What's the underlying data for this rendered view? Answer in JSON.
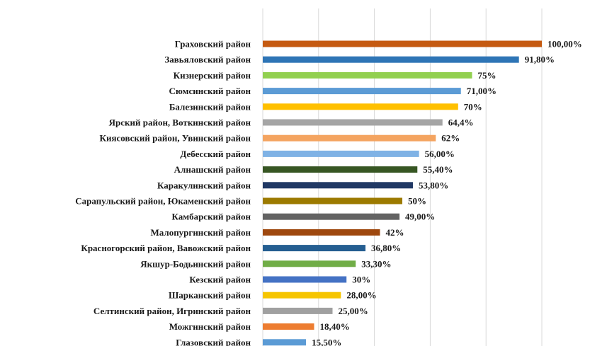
{
  "chart_data": {
    "type": "bar",
    "orientation": "horizontal",
    "title": "",
    "xlabel": "",
    "ylabel": "",
    "xlim": [
      0,
      100
    ],
    "grid": true,
    "categories": [
      "Граховский район",
      "Завьяловский район",
      "Кизнерский район",
      "Сюмсинский район",
      "Балезинский район",
      "Ярский район, Воткинский район",
      "Киясовский район, Увинский район",
      "Дебесский район",
      "Алнашский район",
      "Каракулинский район",
      "Сарапульский район, Юкаменский район",
      "Камбарский район",
      "Малопургинский район",
      "Красногорский район, Вавожский район",
      "Якшур-Бодьинский район",
      "Кезский район",
      "Шарканский район",
      "Селтинский район, Игринский район",
      "Можгинский район",
      "Глазовский район"
    ],
    "values": [
      100,
      91.8,
      75,
      71,
      70,
      64.4,
      62,
      56,
      55.4,
      53.8,
      50,
      49,
      42,
      36.8,
      33.3,
      30,
      28,
      25,
      18.4,
      15.5
    ],
    "value_labels": [
      "100,00%",
      "91,80%",
      "75%",
      "71,00%",
      "70%",
      "64,4%",
      "62%",
      "56,00%",
      "55,40%",
      "53,80%",
      "50%",
      "49,00%",
      "42%",
      "36,80%",
      "33,30%",
      "30%",
      "28,00%",
      "25,00%",
      "18,40%",
      "15,50%"
    ],
    "colors": [
      "#c55a11",
      "#2e75b6",
      "#92d050",
      "#5b9bd5",
      "#ffc000",
      "#a5a5a5",
      "#f4a460",
      "#7fb2e5",
      "#375623",
      "#203864",
      "#9c7a00",
      "#636363",
      "#9e480e",
      "#255e91",
      "#70ad47",
      "#4472c4",
      "#f6c500",
      "#a0a0a0",
      "#ed7d31",
      "#5b9bd5"
    ]
  }
}
